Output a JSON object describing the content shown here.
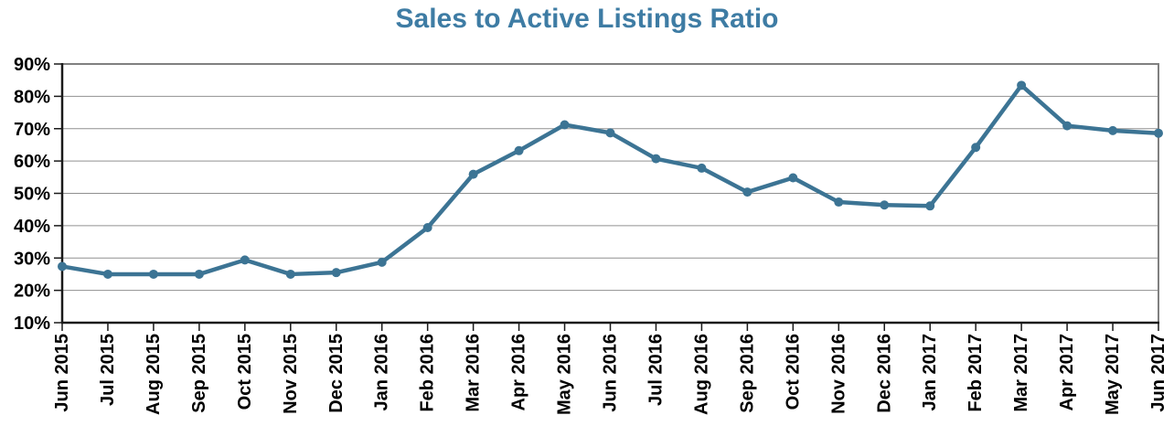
{
  "title": "Sales to Active Listings Ratio",
  "colors": {
    "title": "#3E7CA4",
    "line": "#3C7494",
    "grid": "#909090",
    "border": "#808080",
    "axis": "#1A1A1A",
    "label": "#000000",
    "background": "#FFFFFF"
  },
  "chart_data": {
    "type": "line",
    "title": "Sales to Active Listings Ratio",
    "xlabel": "",
    "ylabel": "",
    "ylim": [
      10,
      90
    ],
    "ytick_interval": 10,
    "ytick_labels": [
      "10%",
      "20%",
      "30%",
      "40%",
      "50%",
      "60%",
      "70%",
      "80%",
      "90%"
    ],
    "grid": true,
    "legend": false,
    "marker": "circle",
    "categories": [
      "Jun 2015",
      "Jul 2015",
      "Aug 2015",
      "Sep 2015",
      "Oct 2015",
      "Nov 2015",
      "Dec 2015",
      "Jan 2016",
      "Feb 2016",
      "Mar 2016",
      "Apr 2016",
      "May 2016",
      "Jun 2016",
      "Jul 2016",
      "Aug 2016",
      "Sep 2016",
      "Oct 2016",
      "Nov 2016",
      "Dec 2016",
      "Jan 2017",
      "Feb 2017",
      "Mar 2017",
      "Apr 2017",
      "May 2017",
      "Jun 2017"
    ],
    "values": [
      27.4,
      25.0,
      25.0,
      25.0,
      29.4,
      25.0,
      25.5,
      28.7,
      39.4,
      55.9,
      63.2,
      71.2,
      68.7,
      60.7,
      57.8,
      50.4,
      54.8,
      47.3,
      46.4,
      46.1,
      64.2,
      83.4,
      70.9,
      69.4,
      68.6
    ]
  }
}
